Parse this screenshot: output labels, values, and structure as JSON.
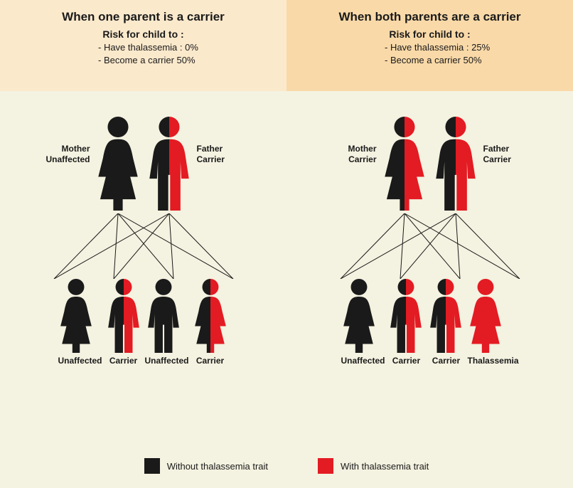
{
  "colors": {
    "bg": "#f4f2e0",
    "header_left": "#fbe9cc",
    "header_right": "#f9d9a8",
    "unaffected": "#1a1a1a",
    "trait": "#e31b23",
    "line": "#1a1a1a",
    "text": "#1a1a1a"
  },
  "left": {
    "title": "When one parent is a carrier",
    "risk_title": "Risk for child to :",
    "risk1": "- Have thalassemia : 0%",
    "risk2": "- Become a carrier 50%",
    "mother": {
      "label1": "Mother",
      "label2": "Unaffected",
      "type": "female",
      "status": "unaffected"
    },
    "father": {
      "label1": "Father",
      "label2": "Carrier",
      "type": "male",
      "status": "carrier"
    },
    "children": [
      {
        "type": "female",
        "status": "unaffected",
        "label": "Unaffected"
      },
      {
        "type": "male",
        "status": "carrier",
        "label": "Carrier"
      },
      {
        "type": "male",
        "status": "unaffected",
        "label": "Unaffected"
      },
      {
        "type": "female",
        "status": "carrier",
        "label": "Carrier"
      }
    ]
  },
  "right": {
    "title": "When both parents are a carrier",
    "risk_title": "Risk for child to :",
    "risk1": "- Have thalassemia : 25%",
    "risk2": "- Become a carrier 50%",
    "mother": {
      "label1": "Mother",
      "label2": "Carrier",
      "type": "female",
      "status": "carrier"
    },
    "father": {
      "label1": "Father",
      "label2": "Carrier",
      "type": "male",
      "status": "carrier"
    },
    "children": [
      {
        "type": "female",
        "status": "unaffected",
        "label": "Unaffected"
      },
      {
        "type": "male",
        "status": "carrier",
        "label": "Carrier"
      },
      {
        "type": "male",
        "status": "carrier",
        "label": "Carrier"
      },
      {
        "type": "female",
        "status": "affected",
        "label": "Thalassemia"
      }
    ]
  },
  "legend": {
    "without": "Without thalassemia trait",
    "with": "With thalassemia  trait"
  }
}
